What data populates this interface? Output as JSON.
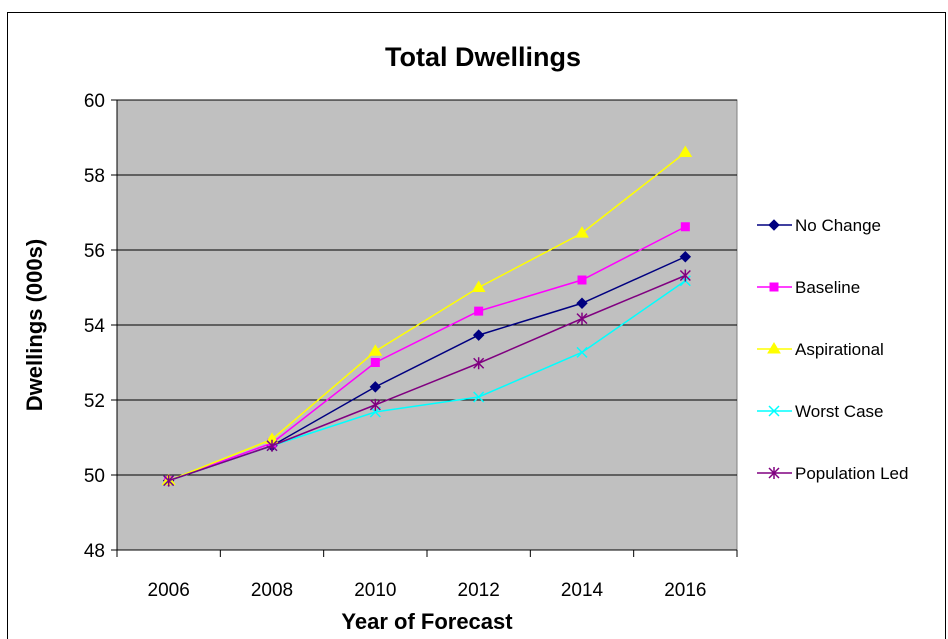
{
  "chart_data": {
    "type": "line",
    "title": "Total Dwellings",
    "xlabel": "Year of Forecast",
    "ylabel": "Dwellings (000s)",
    "x": [
      "2006",
      "2008",
      "2010",
      "2012",
      "2014",
      "2016"
    ],
    "ylim": [
      48,
      60
    ],
    "yticks": [
      "48",
      "50",
      "52",
      "54",
      "56",
      "58",
      "60"
    ],
    "grid": "horizontal",
    "legend": "right",
    "plot_background": "#c0c0c0",
    "series": [
      {
        "name": "No Change",
        "color": "#000080",
        "marker": "diamond",
        "values": [
          49.85,
          50.78,
          52.35,
          53.73,
          54.58,
          55.82
        ]
      },
      {
        "name": "Baseline",
        "color": "#ff00ff",
        "marker": "square",
        "values": [
          49.85,
          50.85,
          53.0,
          54.37,
          55.2,
          56.62
        ]
      },
      {
        "name": "Aspirational",
        "color": "#ffff00",
        "marker": "triangle",
        "values": [
          49.85,
          50.95,
          53.3,
          55.0,
          56.45,
          58.6
        ]
      },
      {
        "name": "Worst Case",
        "color": "#00ffff",
        "marker": "x",
        "values": [
          49.85,
          50.78,
          51.68,
          52.08,
          53.27,
          55.18
        ]
      },
      {
        "name": "Population Led",
        "color": "#800080",
        "marker": "star",
        "values": [
          49.85,
          50.78,
          51.87,
          52.98,
          54.17,
          55.32
        ]
      }
    ]
  }
}
